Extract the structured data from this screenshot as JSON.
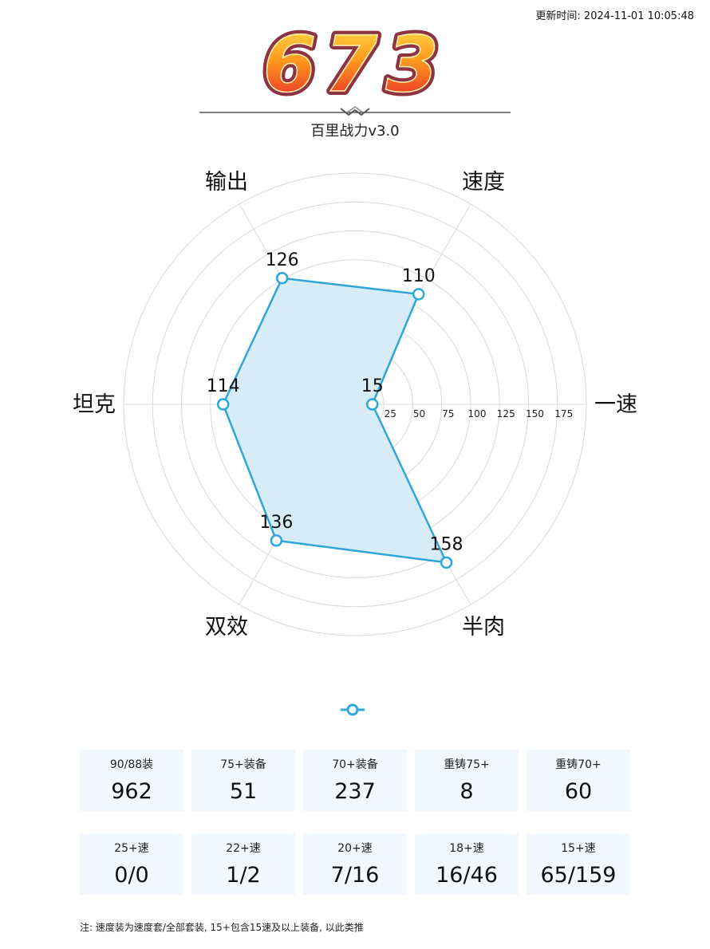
{
  "update_time": "更新时间: 2024-11-01 10:05:48",
  "score": "673",
  "subtitle": "百里战力v3.0",
  "chart_data": {
    "type": "radar",
    "axes": [
      "一速",
      "速度",
      "输出",
      "坦克",
      "双效",
      "半肉"
    ],
    "values": [
      15,
      110,
      126,
      114,
      136,
      158
    ],
    "value_labels": [
      "15",
      "110",
      "126",
      "114",
      "136",
      "158"
    ],
    "radial_ticks": [
      25,
      50,
      75,
      100,
      125,
      150,
      175
    ],
    "radial_tick_labels": [
      "25",
      "50",
      "75",
      "100",
      "125",
      "150",
      "175"
    ],
    "rmax": 200,
    "grid": true,
    "colors": {
      "line": "#2ea6d8",
      "fill": "#d6ebf8",
      "grid": "#d9d9d9"
    }
  },
  "stats_row1": [
    {
      "label": "90/88装",
      "value": "962"
    },
    {
      "label": "75+装备",
      "value": "51"
    },
    {
      "label": "70+装备",
      "value": "237"
    },
    {
      "label": "重铸75+",
      "value": "8"
    },
    {
      "label": "重铸70+",
      "value": "60"
    }
  ],
  "stats_row2": [
    {
      "label": "25+速",
      "value": "0/0"
    },
    {
      "label": "22+速",
      "value": "1/2"
    },
    {
      "label": "20+速",
      "value": "7/16"
    },
    {
      "label": "18+速",
      "value": "16/46"
    },
    {
      "label": "15+速",
      "value": "65/159"
    }
  ],
  "footnote": "注: 速度装为速度套/全部套装, 15+包含15速及以上装备, 以此类推"
}
